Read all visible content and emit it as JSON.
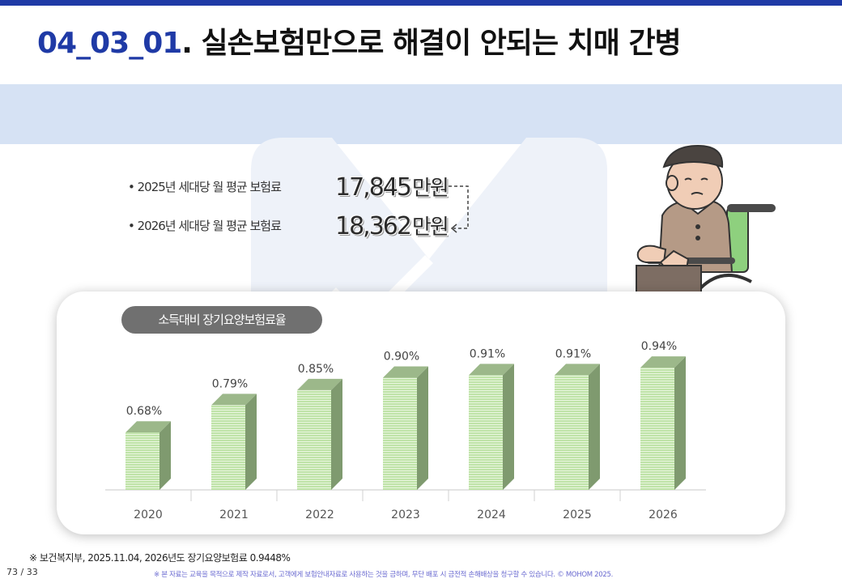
{
  "header": {
    "code": "04_03_01",
    "title": ". 실손보험만으로 해결이 안되는 치매 간병"
  },
  "premiums": [
    {
      "label": "• 2025년 세대당 월 평균 보험료",
      "amount": "17,845",
      "unit": "만원"
    },
    {
      "label": "• 2026년 세대당 월 평균 보험료",
      "amount": "18,362",
      "unit": "만원"
    }
  ],
  "chart_pill": "소득대비 장기요양보험료율",
  "chart_data": {
    "type": "bar",
    "title": "소득대비 장기요양보험료율",
    "categories": [
      "2020",
      "2021",
      "2022",
      "2023",
      "2024",
      "2025",
      "2026"
    ],
    "values": [
      0.68,
      0.79,
      0.85,
      0.9,
      0.91,
      0.91,
      0.94
    ],
    "value_labels": [
      "0.68%",
      "0.79%",
      "0.85%",
      "0.90%",
      "0.91%",
      "0.91%",
      "0.94%"
    ],
    "bar_color": "#bfe3a8",
    "side_color": "#7f9a6f",
    "ylim": [
      0.45,
      0.96
    ]
  },
  "footnote": "※ 보건복지부, 2025.11.04, 2026년도 장기요양보험료 0.9448%",
  "page_number": "73 / 33",
  "disclaimer": "※ 본 자료는 교육을 목적으로 제작 자료로서, 고객에게 보험안내자료로 사용하는 것을 금하며, 무단 배포 시 금전적 손해배상을 청구할 수 있습니다. © MOHOM 2025.",
  "colors": {
    "accent": "#1f3aa6",
    "band": "#d6e2f4",
    "pill": "#707070"
  }
}
